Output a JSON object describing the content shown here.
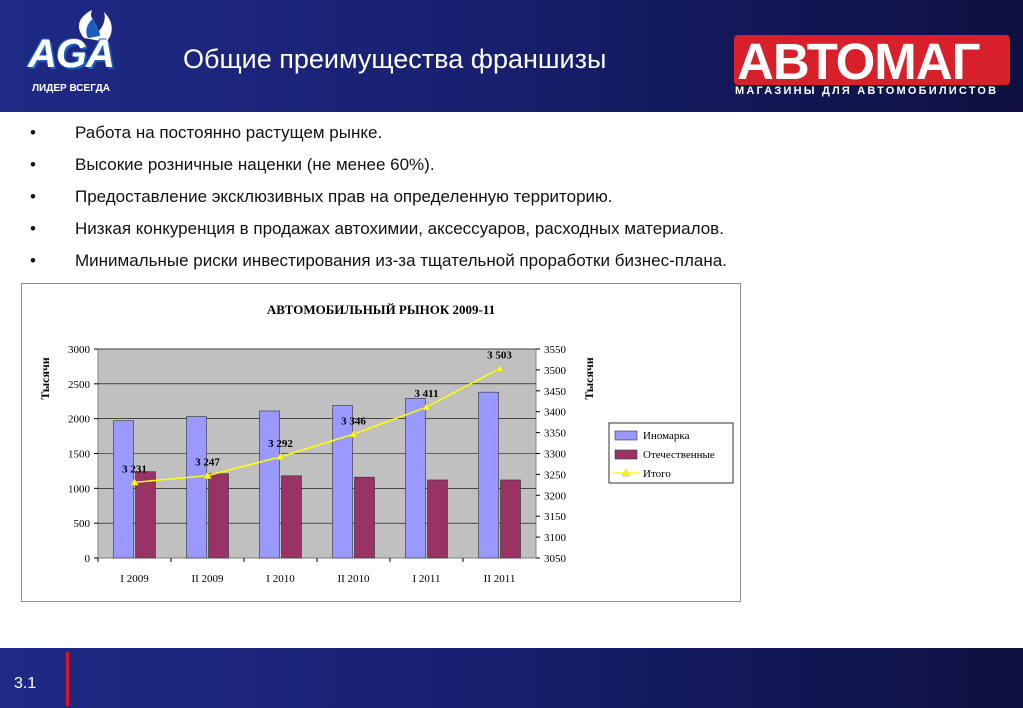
{
  "header": {
    "aga_logo_text": "AGA",
    "aga_slogan": "ЛИДЕР ВСЕГДА",
    "title": "Общие преимущества франшизы",
    "avtomag_logo_text": "АВТОМАГ",
    "avtomag_subtitle": "МАГАЗИНЫ ДЛЯ АВТОМОБИЛИСТОВ"
  },
  "bullets": [
    {
      "marker": "•",
      "text": "Работа на постоянно растущем рынке."
    },
    {
      "marker": "•",
      "text": "Высокие розничные наценки (не менее 60%)."
    },
    {
      "marker": "•",
      "text": "Предоставление эксклюзивных прав на определенную территорию."
    },
    {
      "marker": "•",
      "text": "Низкая конкуренция в продажах автохимии, аксессуаров, расходных материалов."
    },
    {
      "marker": "•",
      "text": "Минимальные риски инвестирования из-за тщательной проработки бизнес-плана."
    }
  ],
  "footer": {
    "slide_number": "3.1"
  },
  "colors": {
    "header_bg": "#1f2a86",
    "accent_red": "#e0141c",
    "bar_foreign": "#9999ff",
    "bar_domestic": "#993366",
    "line_total": "#ffff00",
    "plot_bg": "#c0c0c0"
  },
  "chart_data": {
    "type": "bar",
    "title": "АВТОМОБИЛЬНЫЙ РЫНОК 2009-11",
    "categories": [
      "I 2009",
      "II 2009",
      "I 2010",
      "II 2010",
      "I 2011",
      "II 2011"
    ],
    "ylabel": "Тысячи",
    "y2label": "Тысячи",
    "ylim": [
      0,
      3000
    ],
    "yticks": [
      0,
      500,
      1000,
      1500,
      2000,
      2500,
      3000
    ],
    "y2lim": [
      3050,
      3550
    ],
    "y2ticks": [
      3050,
      3100,
      3150,
      3200,
      3250,
      3300,
      3350,
      3400,
      3450,
      3500,
      3550
    ],
    "grid": true,
    "legend_position": "right",
    "series": [
      {
        "name": "Иномарка",
        "type": "bar",
        "axis": "left",
        "values": [
          1970,
          2030,
          2110,
          2190,
          2290,
          2380
        ]
      },
      {
        "name": "Отечественные",
        "type": "bar",
        "axis": "left",
        "values": [
          1240,
          1210,
          1180,
          1160,
          1120,
          1120
        ]
      },
      {
        "name": "Итого",
        "type": "line",
        "axis": "right",
        "values": [
          3231,
          3247,
          3292,
          3346,
          3411,
          3503
        ],
        "labels": [
          "3 231",
          "3 247",
          "3 292",
          "3 346",
          "3 411",
          "3 503"
        ]
      }
    ]
  }
}
